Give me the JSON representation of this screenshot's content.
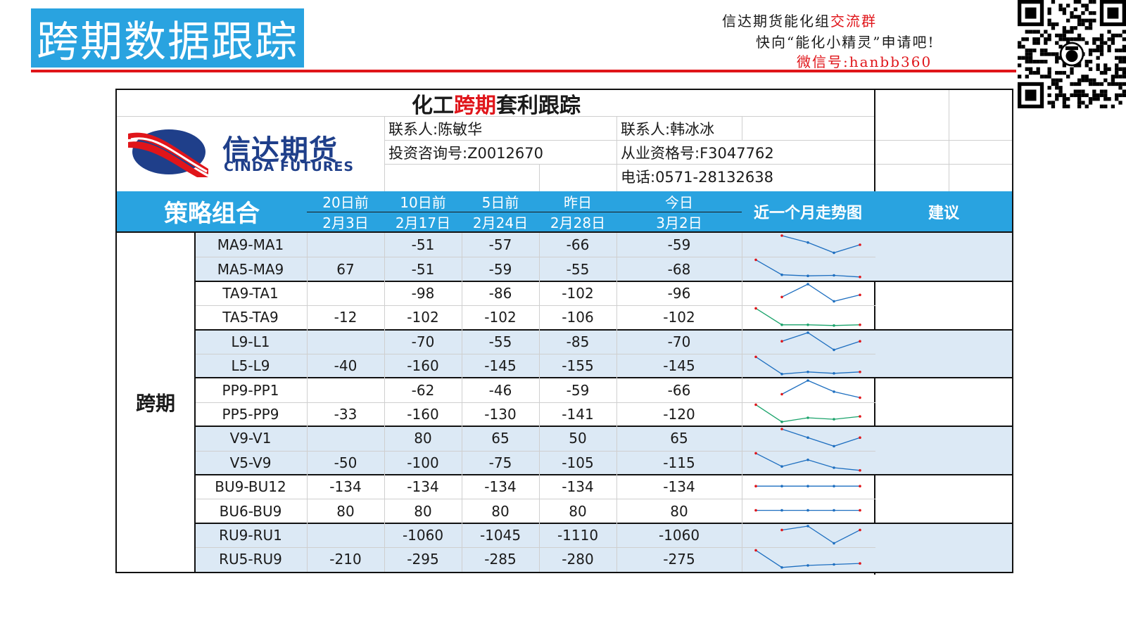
{
  "banner": {
    "title": "跨期数据跟踪"
  },
  "promo": {
    "line1_a": "信达期货能化组",
    "line1_b": "交流群",
    "line2": "快向“能化小精灵”申请吧!",
    "line3": "微信号:hanbb360"
  },
  "sheet": {
    "title_a": "化工",
    "title_b": "跨期",
    "title_c": "套利跟踪",
    "logo": {
      "cn": "信达期货",
      "en": "CINDA FUTURES"
    },
    "contacts": {
      "c1_name": "联系人:陈敏华",
      "c1_id": "投资咨询号:Z0012670",
      "c2_name": "联系人:韩冰冰",
      "c2_id": "从业资格号:F3047762",
      "c2_phone": "电话:0571-28132638"
    },
    "header": {
      "group": "策略组合",
      "cols": [
        {
          "top": "20日前",
          "date": "2月3日"
        },
        {
          "top": "10日前",
          "date": "2月17日"
        },
        {
          "top": "5日前",
          "date": "2月24日"
        },
        {
          "top": "昨日",
          "date": "2月28日"
        },
        {
          "top": "今日",
          "date": "3月2日"
        }
      ],
      "trend": "近一个月走势图",
      "advice": "建议"
    },
    "category": "跨期",
    "rows": [
      {
        "name": "MA9-MA1",
        "v": [
          "",
          "-51",
          "-57",
          "-66",
          "-59"
        ]
      },
      {
        "name": "MA5-MA9",
        "v": [
          "67",
          "-51",
          "-59",
          "-55",
          "-68"
        ]
      },
      {
        "name": "TA9-TA1",
        "v": [
          "",
          "-98",
          "-86",
          "-102",
          "-96"
        ]
      },
      {
        "name": "TA5-TA9",
        "v": [
          "-12",
          "-102",
          "-102",
          "-106",
          "-102"
        ]
      },
      {
        "name": "L9-L1",
        "v": [
          "",
          "-70",
          "-55",
          "-85",
          "-70"
        ]
      },
      {
        "name": "L5-L9",
        "v": [
          "-40",
          "-160",
          "-145",
          "-155",
          "-145"
        ]
      },
      {
        "name": "PP9-PP1",
        "v": [
          "",
          "-62",
          "-46",
          "-59",
          "-66"
        ]
      },
      {
        "name": "PP5-PP9",
        "v": [
          "-33",
          "-160",
          "-130",
          "-141",
          "-120"
        ]
      },
      {
        "name": "V9-V1",
        "v": [
          "",
          "80",
          "65",
          "50",
          "65"
        ]
      },
      {
        "name": "V5-V9",
        "v": [
          "-50",
          "-100",
          "-75",
          "-105",
          "-115"
        ]
      },
      {
        "name": "BU9-BU12",
        "v": [
          "-134",
          "-134",
          "-134",
          "-134",
          "-134"
        ]
      },
      {
        "name": "BU6-BU9",
        "v": [
          "80",
          "80",
          "80",
          "80",
          "80"
        ]
      },
      {
        "name": "RU9-RU1",
        "v": [
          "",
          "-1060",
          "-1045",
          "-1110",
          "-1060"
        ]
      },
      {
        "name": "RU5-RU9",
        "v": [
          "-210",
          "-295",
          "-285",
          "-280",
          "-275"
        ]
      }
    ],
    "colors": {
      "blue": "#29a3e0",
      "band": "#dce9f5",
      "red": "#e0151a",
      "spark_blue": "#1e6fc0",
      "spark_green": "#1aa36b"
    }
  }
}
